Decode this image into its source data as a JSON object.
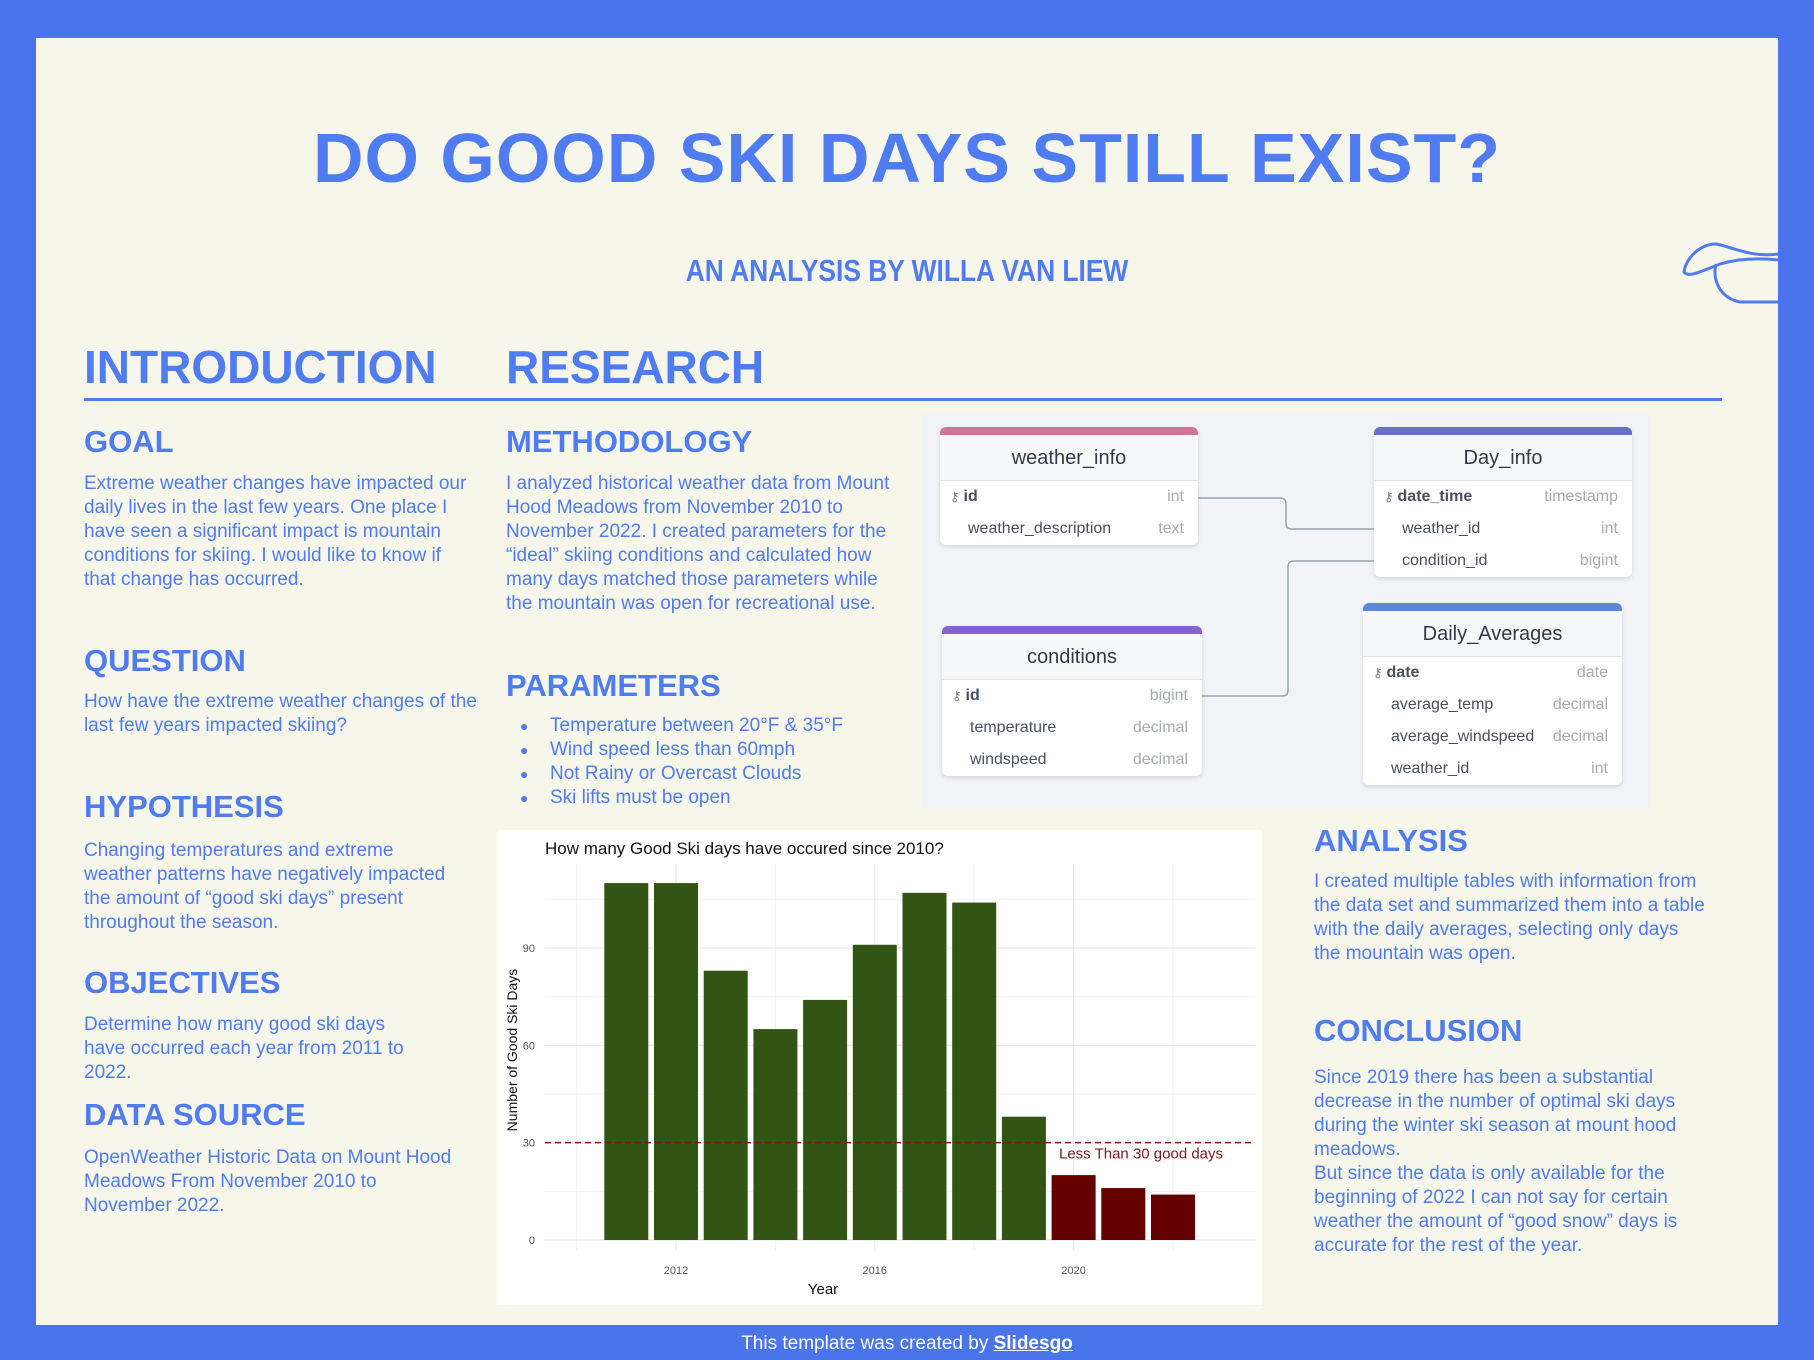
{
  "title": "DO GOOD SKI DAYS STILL EXIST?",
  "subtitle": "AN ANALYSIS BY WILLA VAN LIEW",
  "sections": {
    "intro": "INTRODUCTION",
    "research": "RESEARCH"
  },
  "goal": {
    "heading": "GOAL",
    "text": "Extreme weather changes have impacted our daily lives in the last few years. One place I have seen a significant impact is mountain conditions for skiing. I would like to know if that change has occurred."
  },
  "question": {
    "heading": "QUESTION",
    "text": "How have the extreme weather changes of the last few years impacted skiing?"
  },
  "hypothesis": {
    "heading": "HYPOTHESIS",
    "text": "Changing temperatures and extreme weather patterns have negatively impacted the amount of “good ski days” present throughout the season."
  },
  "objectives": {
    "heading": "OBJECTIVES",
    "text": "Determine how many good ski days have occurred each year from 2011 to 2022."
  },
  "data_source": {
    "heading": "DATA SOURCE",
    "text": "OpenWeather Historic Data on Mount Hood Meadows From November 2010 to November 2022."
  },
  "methodology": {
    "heading": "METHODOLOGY",
    "text": "I analyzed historical weather data from Mount Hood Meadows from November 2010 to November 2022. I created parameters for the “ideal” skiing conditions and calculated how many days matched those parameters while the mountain was open for recreational use."
  },
  "parameters": {
    "heading": "PARAMETERS",
    "items": [
      "Temperature between 20°F & 35°F",
      "Wind speed less than 60mph",
      "Not Rainy or Overcast Clouds",
      "Ski lifts must be open"
    ]
  },
  "analysis": {
    "heading": "ANALYSIS",
    "text": "I created multiple tables with information from the data set and summarized them into a table with the daily averages, selecting only days the mountain was open."
  },
  "conclusion": {
    "heading": "CONCLUSION",
    "text1": "Since 2019 there has been a substantial decrease in the number of optimal ski days during the winter ski season at mount hood meadows.",
    "text2": "But since the data is only available for the beginning of 2022 I can not say for certain weather the amount of “good snow” days is accurate for the rest of the year."
  },
  "erd": {
    "weather_info": {
      "name": "weather_info",
      "color": "#cf7598",
      "rows": [
        [
          "id",
          "int"
        ],
        [
          "weather_description",
          "text"
        ]
      ]
    },
    "day_info": {
      "name": "Day_info",
      "color": "#6b70c4",
      "rows": [
        [
          "date_time",
          "timestamp"
        ],
        [
          "weather_id",
          "int"
        ],
        [
          "condition_id",
          "bigint"
        ]
      ]
    },
    "conditions": {
      "name": "conditions",
      "color": "#8560d6",
      "rows": [
        [
          "id",
          "bigint"
        ],
        [
          "temperature",
          "decimal"
        ],
        [
          "windspeed",
          "decimal"
        ]
      ]
    },
    "daily_averages": {
      "name": "Daily_Averages",
      "color": "#5b88d6",
      "rows": [
        [
          "date",
          "date"
        ],
        [
          "average_temp",
          "decimal"
        ],
        [
          "average_windspeed",
          "decimal"
        ],
        [
          "weather_id",
          "int"
        ]
      ]
    }
  },
  "chart_data": {
    "type": "bar",
    "title": "How many Good Ski days have occured since 2010?",
    "xlabel": "Year",
    "ylabel": "Number of Good Ski Days",
    "x": [
      2011,
      2012,
      2013,
      2014,
      2015,
      2016,
      2017,
      2018,
      2019,
      2020,
      2021,
      2022
    ],
    "values": [
      110,
      110,
      83,
      65,
      74,
      91,
      107,
      104,
      38,
      20,
      16,
      14
    ],
    "colors": {
      "above": "#325414",
      "below": "#650000"
    },
    "ylim": [
      0,
      112
    ],
    "yticks": [
      0,
      30,
      60,
      90
    ],
    "xticks": [
      2012,
      2016,
      2020
    ],
    "threshold": {
      "value": 30,
      "label": "Less Than 30 good days",
      "color": "#7a1a1a"
    }
  },
  "footer": {
    "text": "This template was created by ",
    "link": "Slidesgo"
  }
}
